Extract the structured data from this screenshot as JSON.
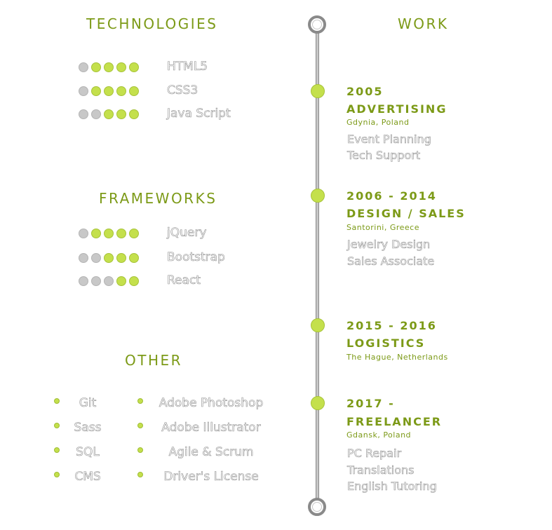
{
  "technologies": {
    "heading": "TECHNOLOGIES",
    "items": [
      {
        "label": "HTML5",
        "level": 4,
        "max": 5
      },
      {
        "label": "CSS3",
        "level": 4,
        "max": 5
      },
      {
        "label": "Java Script",
        "level": 3,
        "max": 5
      }
    ]
  },
  "frameworks": {
    "heading": "FRAMEWORKS",
    "items": [
      {
        "label": "jQuery",
        "level": 4,
        "max": 5
      },
      {
        "label": "Bootstrap",
        "level": 3,
        "max": 5
      },
      {
        "label": "React",
        "level": 2,
        "max": 5
      }
    ]
  },
  "other": {
    "heading": "OTHER",
    "left": [
      "Git",
      "Sass",
      "SQL",
      "CMS"
    ],
    "right": [
      "Adobe Photoshop",
      "Adobe Illustrator",
      "Agile & Scrum",
      "Driver's License"
    ]
  },
  "work": {
    "heading": "WORK",
    "jobs": [
      {
        "year": "2005",
        "title": "ADVERTISING",
        "place": "Gdynia, Poland",
        "duties": [
          "Event Planning",
          "Tech Support"
        ]
      },
      {
        "year": "2006 - 2014",
        "title": "DESIGN / SALES",
        "place": "Santorini, Greece",
        "duties": [
          "Jewelry Design",
          "Sales Associate"
        ]
      },
      {
        "year": "2015 - 2016",
        "title": "LOGISTICS",
        "place": "The Hague, Netherlands",
        "duties": []
      },
      {
        "year": "2017 -",
        "title": "FREELANCER",
        "place": "Gdansk, Poland",
        "duties": [
          "PC Repair",
          "Translations",
          "English Tutoring"
        ]
      }
    ]
  },
  "colors": {
    "accent": "#c4e04c",
    "heading": "#7c9a17",
    "inactive_dot": "#c8c8c8",
    "line": "#8a8a8a"
  }
}
